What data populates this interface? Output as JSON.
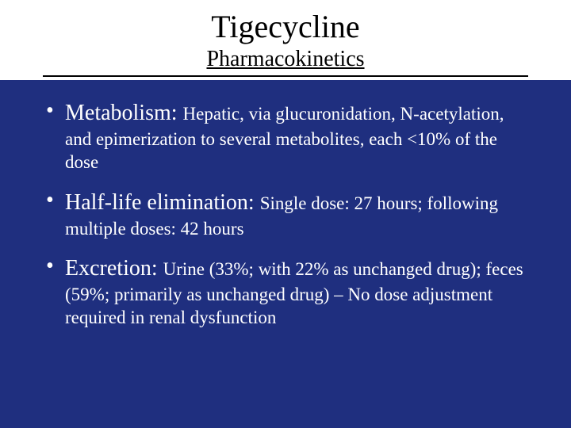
{
  "slide": {
    "title": "Tigecycline",
    "subtitle": "Pharmacokinetics",
    "bullets": [
      {
        "term": "Metabolism: ",
        "desc": "Hepatic, via glucuronidation, N-acetylation, and epimerization to several metabolites, each <10% of the dose"
      },
      {
        "term": "Half-life elimination: ",
        "desc": "Single dose: 27 hours; following multiple doses: 42 hours"
      },
      {
        "term": "Excretion: ",
        "desc": "Urine (33%; with 22% as unchanged drug); feces (59%; primarily as unchanged drug) – No dose adjustment required in renal dysfunction"
      }
    ],
    "colors": {
      "background": "#1f2f7f",
      "header_bg": "#ffffff",
      "text_body": "#ffffff",
      "text_header": "#000000",
      "rule": "#000000"
    },
    "fonts": {
      "family": "Times New Roman",
      "title_size_pt": 40,
      "subtitle_size_pt": 28,
      "term_size_pt": 28,
      "desc_size_pt": 23
    }
  }
}
